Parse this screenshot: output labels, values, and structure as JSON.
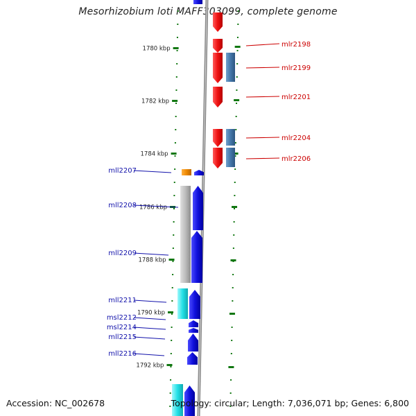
{
  "header": {
    "title": "Mesorhizobium loti MAFF303099, complete genome"
  },
  "footer": {
    "accession": "Accession: NC_002678",
    "summary": "Topology: circular; Length: 7,036,071 bp; Genes: 6,800"
  },
  "colors": {
    "forward_cds": "#ee1111",
    "forward_cog": "#4477aa",
    "reverse_cds": "#1111dd",
    "reverse_cog_gray": "#b8b8b8",
    "reverse_cog_cyan": "#22e0e6",
    "reverse_cog_orange": "#ee8800",
    "forward_label": "#cc0000",
    "reverse_label": "#1111aa",
    "tick": "#117711",
    "backbone": "#888888"
  },
  "scale": {
    "unit": "kbp",
    "ticks": [
      "1780 kbp",
      "1782 kbp",
      "1784 kbp",
      "1786 kbp",
      "1788 kbp",
      "1790 kbp",
      "1792 kbp"
    ]
  },
  "genes": {
    "forward": [
      "mlr2198",
      "mlr2199",
      "mlr2201",
      "mlr2204",
      "mlr2206"
    ],
    "reverse": [
      "mll2207",
      "mll2208",
      "mll2209",
      "mll2211",
      "msl2212",
      "msl2214",
      "mll2215",
      "mll2216"
    ]
  }
}
